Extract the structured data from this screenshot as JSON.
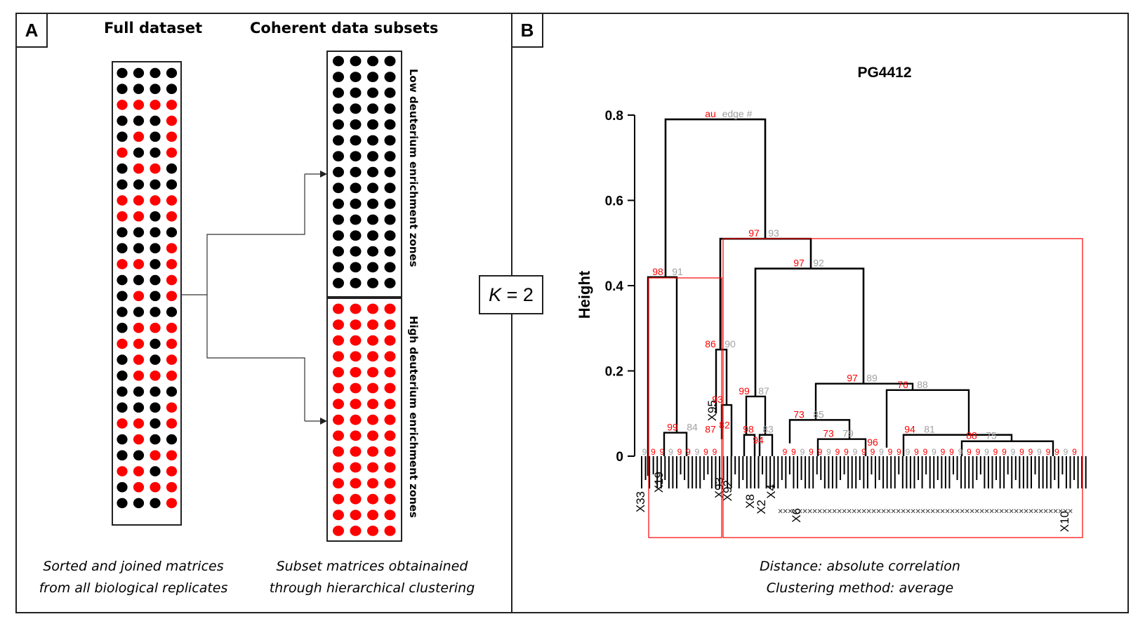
{
  "panel_a": {
    "tag": "A",
    "left_heading": "Full dataset",
    "right_heading": "Coherent data subsets",
    "low_zone_label": "Low  deuterium enrichment zones",
    "high_zone_label": "High deuterium enrichment zones",
    "left_caption": [
      "Sorted and joined matrices",
      "from all biological replicates"
    ],
    "right_caption": [
      "Subset matrices  obtainained",
      "through hierarchical clustering"
    ],
    "colors": {
      "low": "#000000",
      "high": "#ff0000"
    },
    "full_matrix_pattern": [
      "0000",
      "0000",
      "1111",
      "0001",
      "0101",
      "1001",
      "0110",
      "0000",
      "1111",
      "1101",
      "0000",
      "0001",
      "1101",
      "0001",
      "0101",
      "0000",
      "0111",
      "1101",
      "0101",
      "0111",
      "0000",
      "0001",
      "1101",
      "0100",
      "0011",
      "1101",
      "0111",
      "0001"
    ]
  },
  "panel_b": {
    "tag": "B",
    "chart_title": "PG4412",
    "ylabel": "Height",
    "ytick_labels": [
      "0",
      "0.2",
      "0.4",
      "0.6",
      "0.8"
    ],
    "au_header": "au",
    "edge_header": "edge #",
    "node_labels": [
      {
        "au": "98",
        "edge": "91"
      },
      {
        "au": "97",
        "edge": "93"
      },
      {
        "au": "97",
        "edge": "92"
      },
      {
        "au": "86",
        "edge": "90"
      },
      {
        "au": "97",
        "edge": "89"
      },
      {
        "au": "76",
        "edge": "88"
      },
      {
        "au": "99",
        "edge": "87"
      },
      {
        "au": "73",
        "edge": "85"
      },
      {
        "au": "99",
        "edge": "84"
      },
      {
        "au": "94",
        "edge": "81"
      },
      {
        "au": "73",
        "edge": "79"
      },
      {
        "au": "88",
        "edge": "75"
      },
      {
        "au": "98",
        "edge": "83"
      },
      {
        "au": "87",
        "edge": ""
      },
      {
        "au": "93",
        "edge": ""
      },
      {
        "au": "82",
        "edge": ""
      },
      {
        "au": "96",
        "edge": ""
      },
      {
        "au": "94",
        "edge": ""
      }
    ],
    "leaf_labels": [
      "X33",
      "X19",
      "X95",
      "X93",
      "X92",
      "X8",
      "X2",
      "X4",
      "X6",
      "X10"
    ],
    "caption": [
      "Distance: absolute correlation",
      "Clustering method: average"
    ],
    "colors": {
      "annotation": "#ff0000",
      "edge": "#a0a0a0",
      "cluster_box": "#ff0000"
    }
  },
  "k_label": {
    "italic": "K",
    "rest": " = 2"
  },
  "chart_data": {
    "type": "dendrogram",
    "title": "PG4412",
    "ylabel": "Height",
    "ylim": [
      0,
      0.8
    ],
    "merges": [
      {
        "height": 0.79,
        "au": null,
        "edge": "edge #"
      },
      {
        "height": 0.51,
        "au": 97,
        "edge": 93
      },
      {
        "height": 0.44,
        "au": 97,
        "edge": 92
      },
      {
        "height": 0.42,
        "au": 98,
        "edge": 91
      },
      {
        "height": 0.25,
        "au": 86,
        "edge": 90
      },
      {
        "height": 0.17,
        "au": 97,
        "edge": 89
      },
      {
        "height": 0.155,
        "au": 76,
        "edge": 88
      },
      {
        "height": 0.14,
        "au": 99,
        "edge": 87
      },
      {
        "height": 0.085,
        "au": 73,
        "edge": 85
      },
      {
        "height": 0.055,
        "au": 99,
        "edge": 84
      },
      {
        "height": 0.05,
        "au": 94,
        "edge": 81
      },
      {
        "height": 0.04,
        "au": 73,
        "edge": 79
      },
      {
        "height": 0.035,
        "au": 88,
        "edge": 75
      },
      {
        "height": 0.05,
        "au": 98,
        "edge": 83
      }
    ],
    "clusters_k": 2
  }
}
